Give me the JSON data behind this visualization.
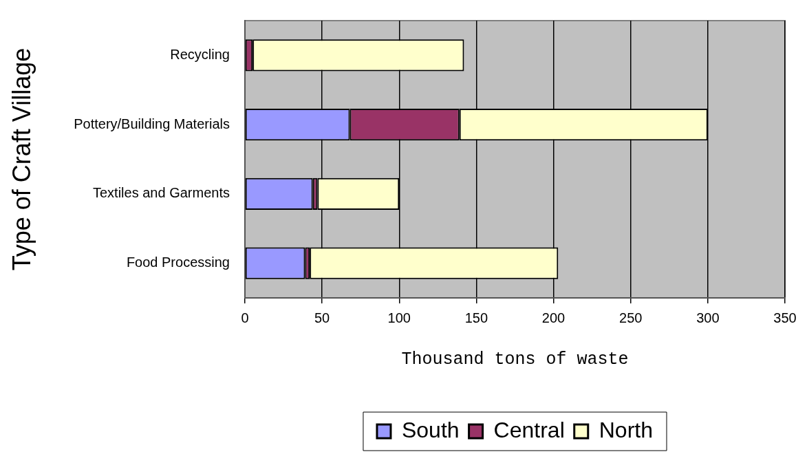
{
  "chart_data": {
    "type": "bar",
    "orientation": "horizontal",
    "stacked": true,
    "xlabel": "Thousand tons of waste",
    "ylabel": "Type of Craft Village",
    "categories": [
      "Recycling",
      "Pottery/Building Materials",
      "Textiles and Garments",
      "Food Processing"
    ],
    "series": [
      {
        "name": "South",
        "color": "#9999ff",
        "values": [
          0,
          68,
          44,
          39
        ]
      },
      {
        "name": "Central",
        "color": "#993366",
        "values": [
          5,
          71,
          3,
          3
        ]
      },
      {
        "name": "North",
        "color": "#ffffcc",
        "values": [
          137,
          161,
          53,
          161
        ]
      }
    ],
    "xlim": [
      0,
      350
    ],
    "xticks": [
      0,
      50,
      100,
      150,
      200,
      250,
      300,
      350
    ],
    "grid": "x",
    "legend": "bottom"
  }
}
